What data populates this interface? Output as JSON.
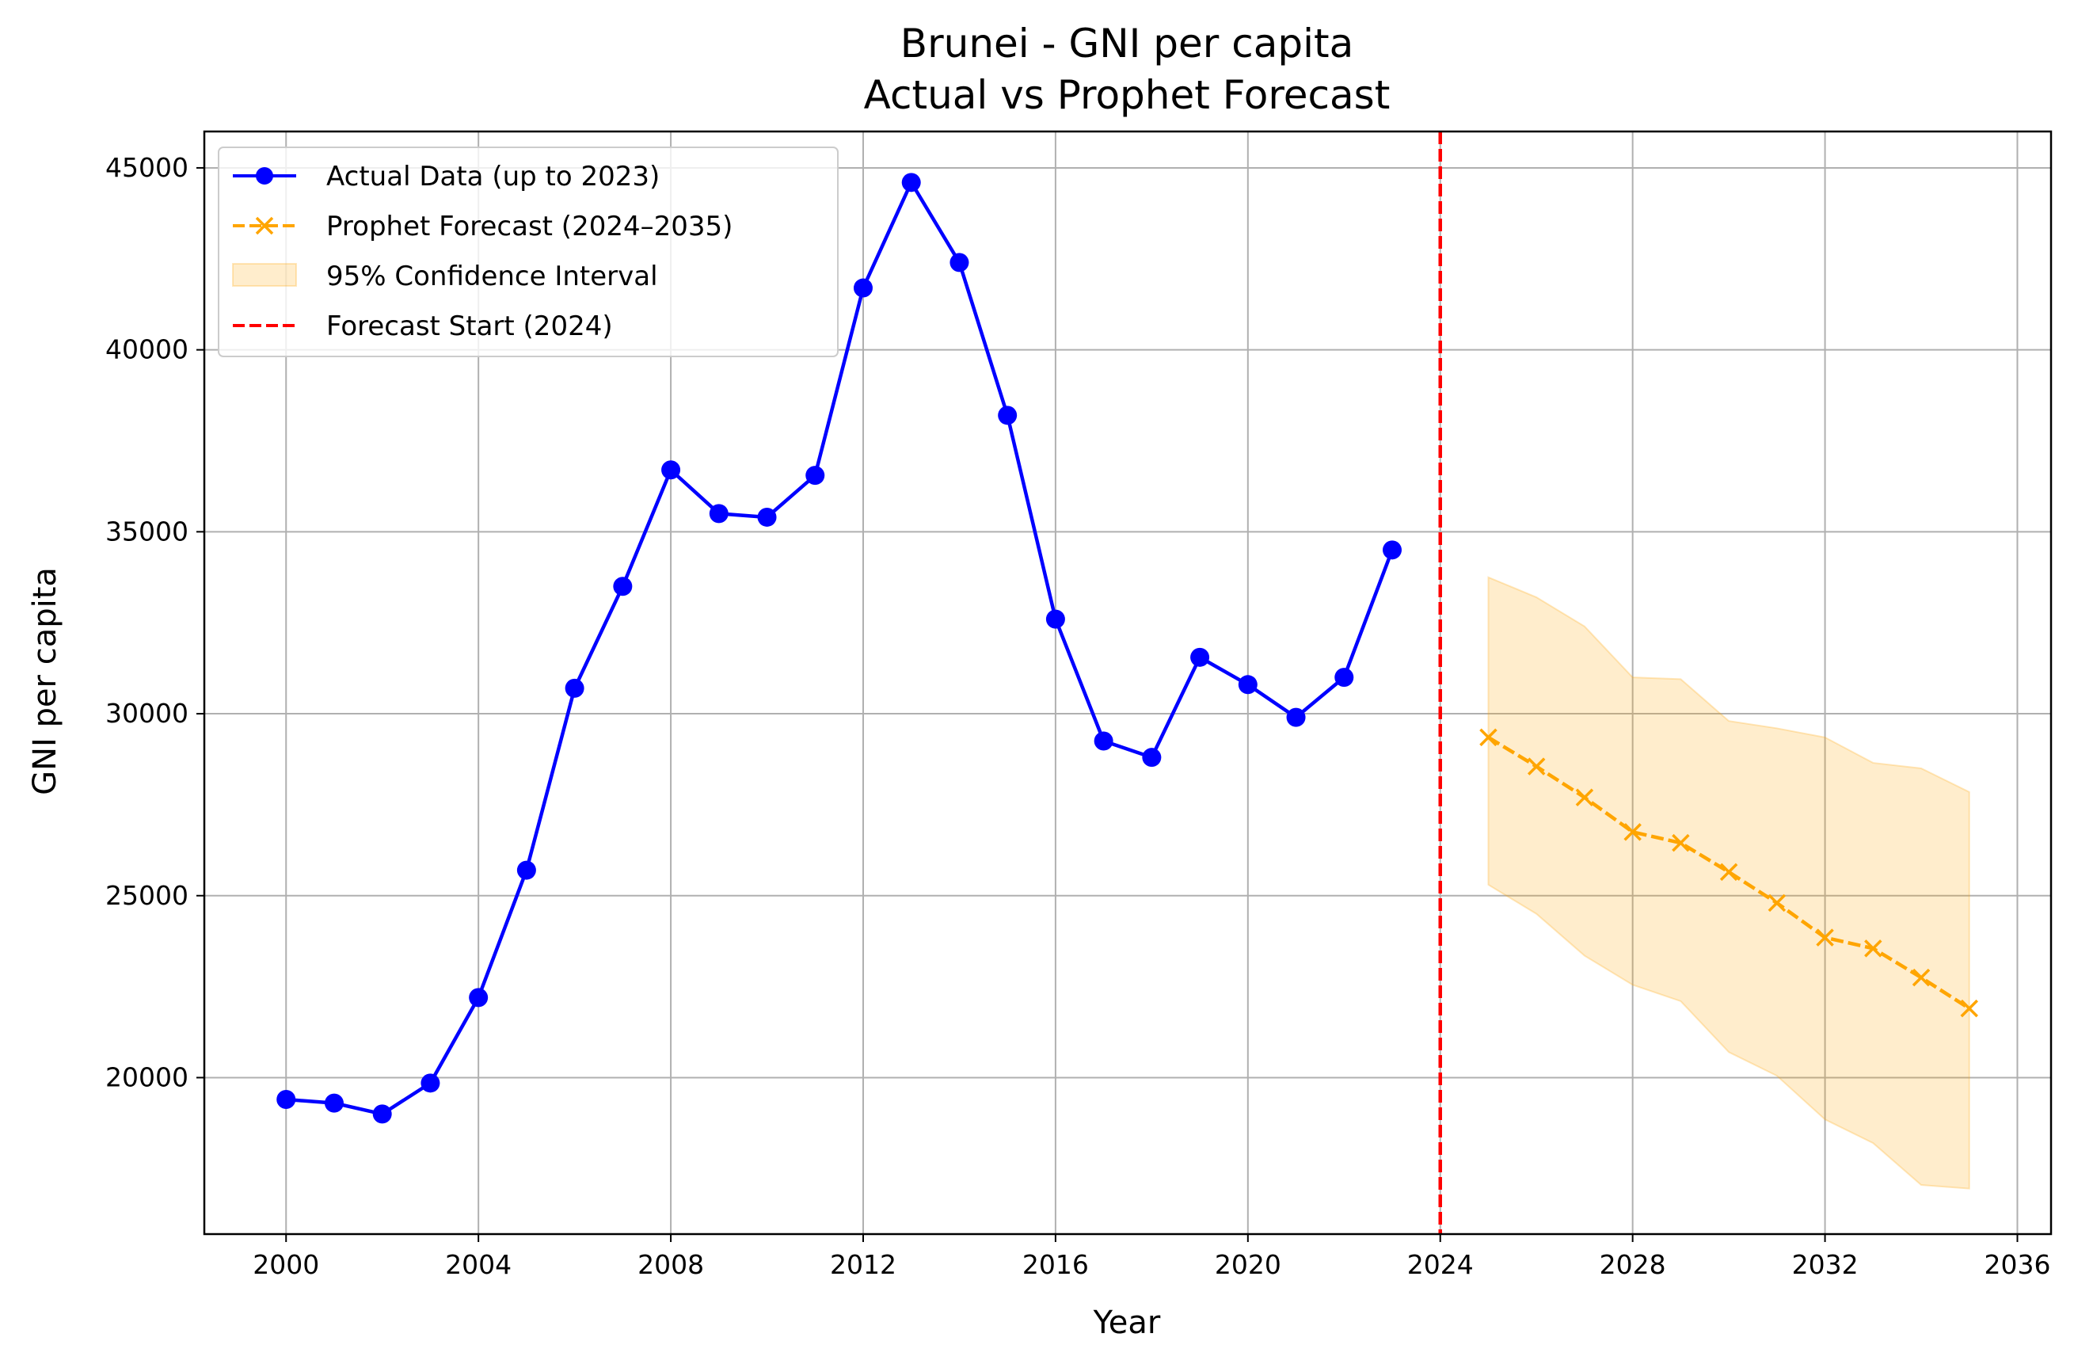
{
  "chart_data": {
    "type": "line",
    "title": "Brunei - GNI per capita",
    "subtitle": "Actual vs Prophet Forecast",
    "xlabel": "Year",
    "ylabel": "GNI per capita",
    "xlim": [
      1998.3,
      2036.7
    ],
    "ylim": [
      15700,
      46000
    ],
    "x_ticks": [
      2000,
      2004,
      2008,
      2012,
      2016,
      2020,
      2024,
      2028,
      2032,
      2036
    ],
    "y_ticks": [
      20000,
      25000,
      30000,
      35000,
      40000,
      45000
    ],
    "grid": true,
    "legend_position": "top-left",
    "series": [
      {
        "name": "Actual Data (up to 2023)",
        "color": "#0000ff",
        "style": "solid",
        "marker": "circle",
        "x": [
          2000,
          2001,
          2002,
          2003,
          2004,
          2005,
          2006,
          2007,
          2008,
          2009,
          2010,
          2011,
          2012,
          2013,
          2014,
          2015,
          2016,
          2017,
          2018,
          2019,
          2020,
          2021,
          2022,
          2023
        ],
        "y": [
          19400,
          19300,
          19000,
          19850,
          22200,
          25700,
          30700,
          33500,
          36700,
          35500,
          35400,
          36550,
          41700,
          44600,
          42400,
          38200,
          32600,
          29250,
          28800,
          31550,
          30800,
          29900,
          31000,
          34500
        ]
      },
      {
        "name": "Prophet Forecast (2024–2035)",
        "color": "#ffa500",
        "style": "dashed",
        "marker": "x",
        "x": [
          2025,
          2026,
          2027,
          2028,
          2029,
          2030,
          2031,
          2032,
          2033,
          2034,
          2035
        ],
        "y": [
          29350,
          28550,
          27700,
          26750,
          26450,
          25650,
          24800,
          23850,
          23550,
          22750,
          21900
        ]
      }
    ],
    "confidence_interval": {
      "name": "95% Confidence Interval",
      "color": "#ffa500",
      "opacity": 0.2,
      "x": [
        2025,
        2026,
        2027,
        2028,
        2029,
        2030,
        2031,
        2032,
        2033,
        2034,
        2035
      ],
      "lower": [
        25300,
        24500,
        23350,
        22550,
        22100,
        20700,
        20050,
        18850,
        18200,
        17050,
        16950
      ],
      "upper": [
        33750,
        33200,
        32400,
        31000,
        30950,
        29800,
        29600,
        29350,
        28650,
        28500,
        27850
      ]
    },
    "vertical_line": {
      "name": "Forecast Start (2024)",
      "x": 2024,
      "color": "#ff0000",
      "style": "dashed"
    }
  }
}
